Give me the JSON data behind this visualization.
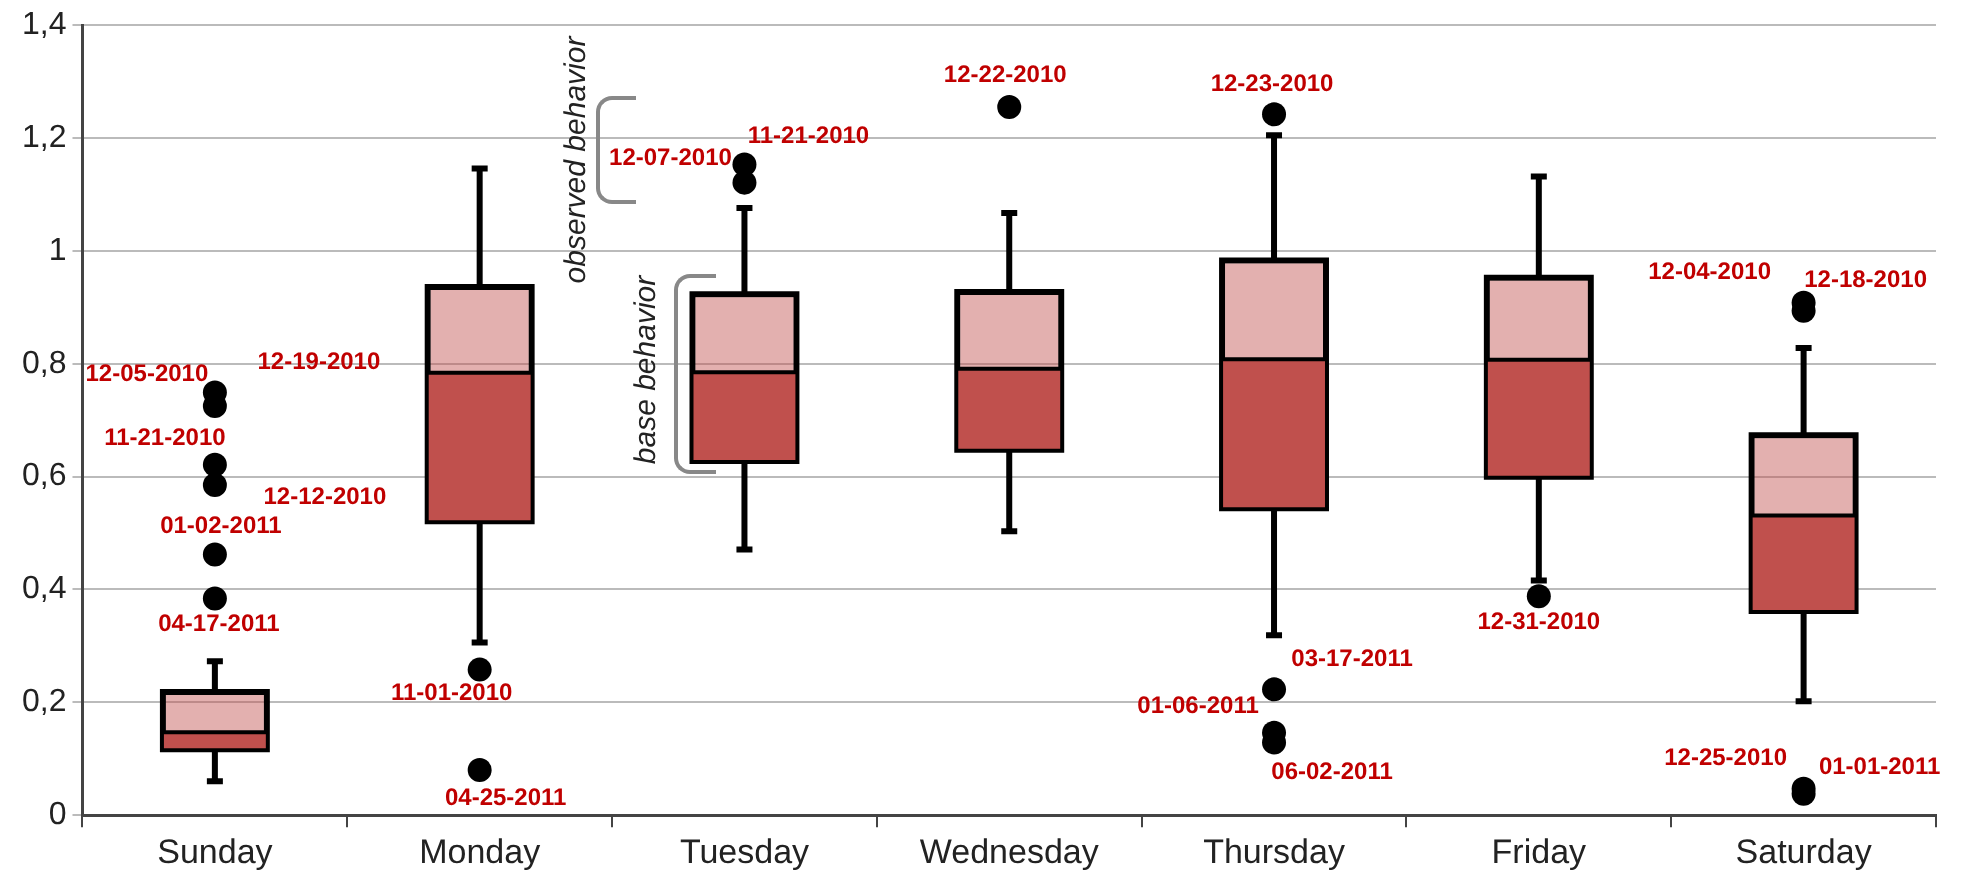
{
  "chart_data": {
    "type": "box",
    "categories": [
      "Sunday",
      "Monday",
      "Tuesday",
      "Wednesday",
      "Thursday",
      "Friday",
      "Saturday"
    ],
    "series": [
      {
        "color": "#c0504d",
        "boxes": [
          {
            "low": 0.06,
            "q1": 0.115,
            "median": 0.147,
            "q3": 0.22,
            "high": 0.273,
            "outliers": [
              0.725,
              0.749,
              0.621,
              0.585,
              0.462,
              0.384
            ]
          },
          {
            "low": 0.306,
            "q1": 0.519,
            "median": 0.784,
            "q3": 0.938,
            "high": 1.146,
            "outliers": [
              0.258,
              0.08
            ]
          },
          {
            "low": 0.471,
            "q1": 0.626,
            "median": 0.785,
            "q3": 0.925,
            "high": 1.076,
            "outliers": [
              1.121,
              1.153
            ]
          },
          {
            "low": 0.503,
            "q1": 0.646,
            "median": 0.791,
            "q3": 0.929,
            "high": 1.067,
            "outliers": [
              1.255
            ]
          },
          {
            "low": 0.319,
            "q1": 0.542,
            "median": 0.808,
            "q3": 0.985,
            "high": 1.205,
            "outliers": [
              1.242,
              0.223,
              0.146,
              0.129
            ]
          },
          {
            "low": 0.416,
            "q1": 0.598,
            "median": 0.807,
            "q3": 0.954,
            "high": 1.132,
            "outliers": [
              0.388
            ]
          },
          {
            "low": 0.202,
            "q1": 0.36,
            "median": 0.531,
            "q3": 0.675,
            "high": 0.828,
            "outliers": [
              0.908,
              0.894,
              0.047,
              0.038
            ]
          }
        ]
      }
    ],
    "ylim": [
      0,
      1.4
    ],
    "yticks": [
      0,
      {
        "value": 0.2,
        "label": "0,2"
      },
      {
        "value": 0.4,
        "label": "0,4"
      },
      {
        "value": 0.6,
        "label": "0,6"
      },
      {
        "value": 0.8,
        "label": "0,8"
      },
      1,
      {
        "value": 1.2,
        "label": "1,2"
      },
      {
        "value": 1.4,
        "label": "1,4"
      }
    ],
    "grid": "y",
    "annotations": [
      "12-05-2010",
      "12-19-2010",
      "11-21-2010",
      "12-12-2010",
      "01-02-2011",
      "04-17-2011",
      "11-01-2010",
      "04-25-2011",
      "12-07-2010",
      "11-21-2010",
      "12-22-2010",
      "12-23-2010",
      "03-17-2011",
      "01-06-2011",
      "06-02-2011",
      "12-31-2010",
      "12-04-2010",
      "12-18-2010",
      "12-25-2010",
      "01-01-2011",
      "observed behavior",
      "base behavior"
    ]
  }
}
